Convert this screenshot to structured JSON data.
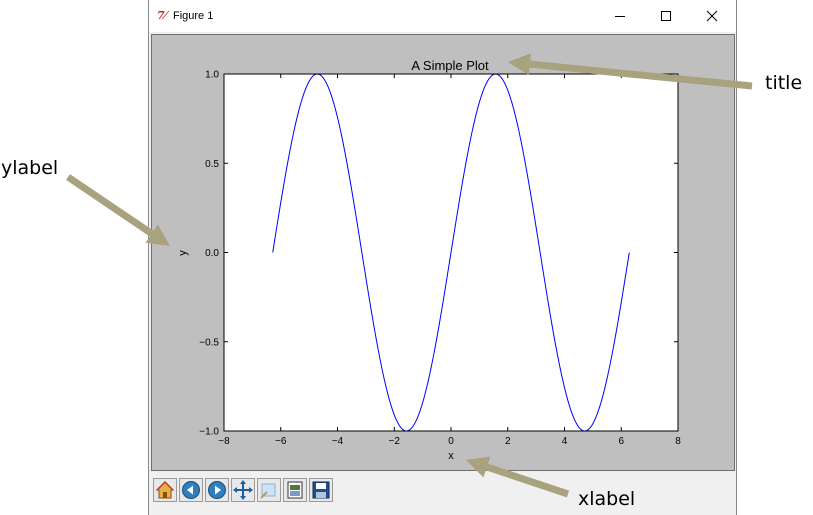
{
  "window": {
    "app_icon_glyph": "7⁄",
    "title": "Figure 1",
    "controls": {
      "minimize": "minimize",
      "maximize": "maximize",
      "close": "close"
    }
  },
  "toolbar": {
    "buttons": [
      "home-icon",
      "back-icon",
      "forward-icon",
      "pan-icon",
      "zoom-icon",
      "subplots-icon",
      "save-icon"
    ]
  },
  "chart_data": {
    "type": "line",
    "title": "A Simple Plot",
    "xlabel": "x",
    "ylabel": "y",
    "xlim": [
      -8,
      8
    ],
    "ylim": [
      -1.0,
      1.0
    ],
    "xticks": [
      "−8",
      "−6",
      "−4",
      "−2",
      "0",
      "2",
      "4",
      "6",
      "8"
    ],
    "yticks": [
      "−1.0",
      "−0.5",
      "0.0",
      "0.5",
      "1.0"
    ],
    "grid": false,
    "series": [
      {
        "function": "sin(x)",
        "x_range": [
          -6.283,
          6.283
        ],
        "color": "#0000ff"
      }
    ]
  },
  "annotations": {
    "title_label": "title",
    "ylabel_label": "ylabel",
    "xlabel_label": "xlabel",
    "arrow_color": "#a8a27f"
  }
}
